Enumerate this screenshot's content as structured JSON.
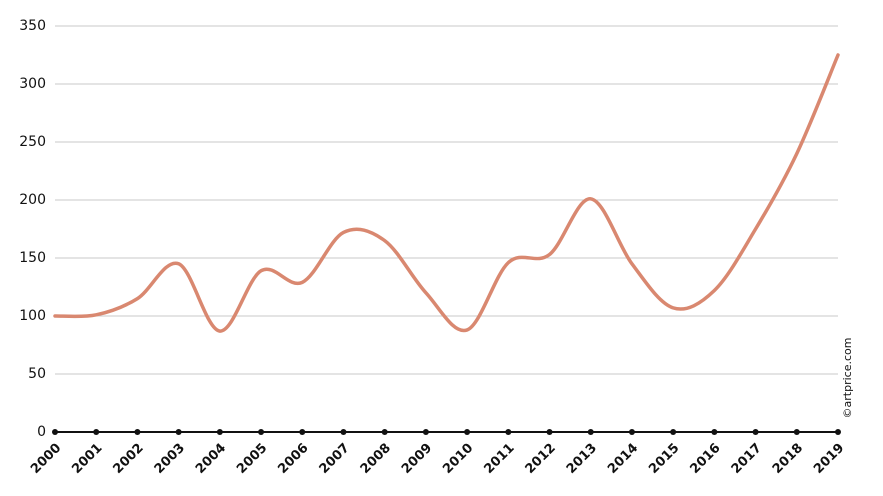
{
  "chart_data": {
    "type": "line",
    "categories": [
      "2000",
      "2001",
      "2002",
      "2003",
      "2004",
      "2005",
      "2006",
      "2007",
      "2008",
      "2009",
      "2010",
      "2011",
      "2012",
      "2013",
      "2014",
      "2015",
      "2016",
      "2017",
      "2018",
      "2019"
    ],
    "values": [
      100,
      101,
      115,
      145,
      87,
      139,
      129,
      172,
      165,
      120,
      88,
      146,
      153,
      201,
      145,
      107,
      122,
      175,
      240,
      325
    ],
    "color": "#d98870",
    "ylim": [
      0,
      350
    ],
    "yticks": [
      0,
      50,
      100,
      150,
      200,
      250,
      300,
      350
    ],
    "grid": true,
    "source": "©artprice.com"
  }
}
